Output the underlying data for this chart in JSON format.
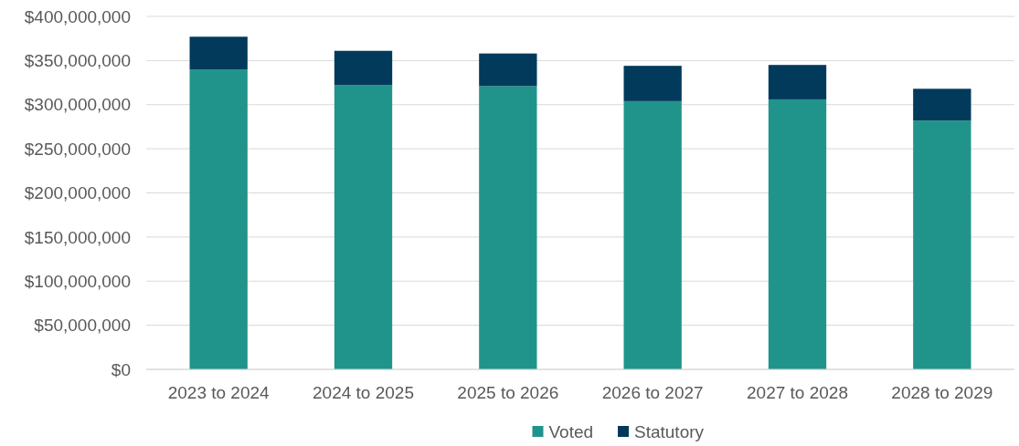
{
  "chart_data": {
    "type": "bar",
    "stacked": true,
    "categories": [
      "2023 to 2024",
      "2024 to 2025",
      "2025 to 2026",
      "2026 to 2027",
      "2027 to 2028",
      "2028 to 2029"
    ],
    "series": [
      {
        "name": "Voted",
        "color": "#20948b",
        "values": [
          340000000,
          322000000,
          321000000,
          304000000,
          306000000,
          282000000
        ]
      },
      {
        "name": "Statutory",
        "color": "#023a5c",
        "values": [
          37000000,
          39000000,
          37000000,
          40000000,
          39000000,
          36000000
        ]
      }
    ],
    "ylim": [
      0,
      400000000
    ],
    "yticks": [
      {
        "value": 0,
        "label": "$0"
      },
      {
        "value": 50000000,
        "label": "$50,000,000"
      },
      {
        "value": 100000000,
        "label": "$100,000,000"
      },
      {
        "value": 150000000,
        "label": "$150,000,000"
      },
      {
        "value": 200000000,
        "label": "$200,000,000"
      },
      {
        "value": 250000000,
        "label": "$250,000,000"
      },
      {
        "value": 300000000,
        "label": "$300,000,000"
      },
      {
        "value": 350000000,
        "label": "$350,000,000"
      },
      {
        "value": 400000000,
        "label": "$400,000,000"
      }
    ],
    "grid": "y",
    "legend": "bottom"
  }
}
